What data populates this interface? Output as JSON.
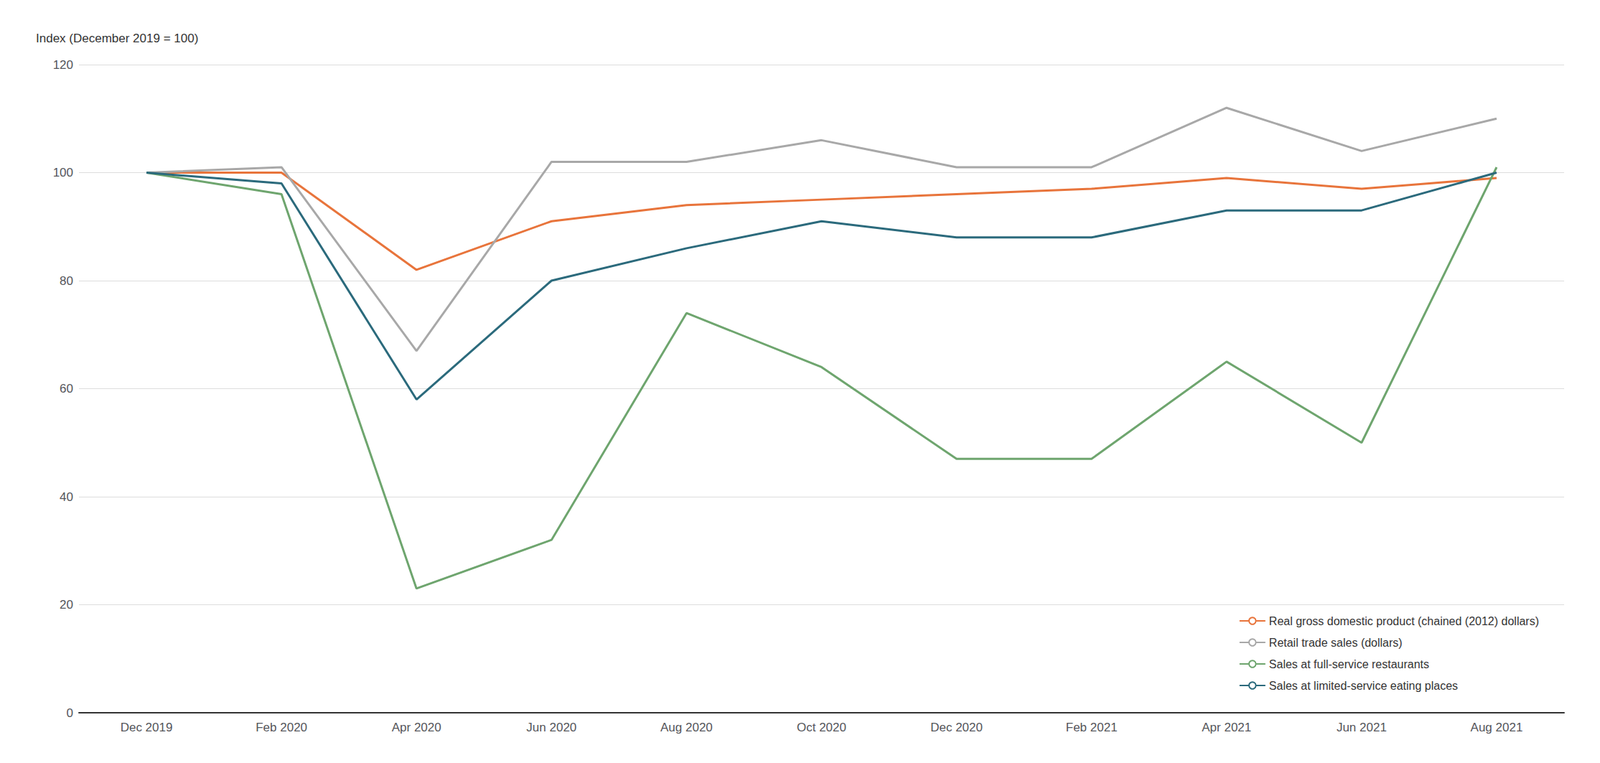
{
  "chart_data": {
    "type": "line",
    "ylabel": "Index (December 2019 = 100)",
    "categories": [
      "Dec 2019",
      "Feb 2020",
      "Apr 2020",
      "Jun 2020",
      "Aug 2020",
      "Oct 2020",
      "Dec 2020",
      "Feb 2021",
      "Apr 2021",
      "Jun 2021",
      "Aug 2021"
    ],
    "series": [
      {
        "name": "Real gross domestic product (chained (2012) dollars)",
        "color": "#E8743B",
        "values": [
          100,
          100,
          82,
          91,
          94,
          95,
          96,
          97,
          99,
          97,
          99
        ]
      },
      {
        "name": "Retail trade sales (dollars)",
        "color": "#A8A8A8",
        "values": [
          100,
          101,
          67,
          102,
          102,
          106,
          101,
          101,
          112,
          104,
          110
        ]
      },
      {
        "name": "Sales at full-service restaurants",
        "color": "#6EA56E",
        "values": [
          100,
          96,
          23,
          32,
          74,
          64,
          47,
          47,
          65,
          50,
          101
        ]
      },
      {
        "name": "Sales at limited-service eating places",
        "color": "#2B6A7C",
        "values": [
          100,
          98,
          58,
          80,
          86,
          91,
          88,
          88,
          93,
          93,
          100
        ]
      }
    ],
    "ylim": [
      0,
      120
    ],
    "yticks": [
      0,
      20,
      40,
      60,
      80,
      100,
      120
    ],
    "grid": true,
    "legend": "lower right"
  }
}
